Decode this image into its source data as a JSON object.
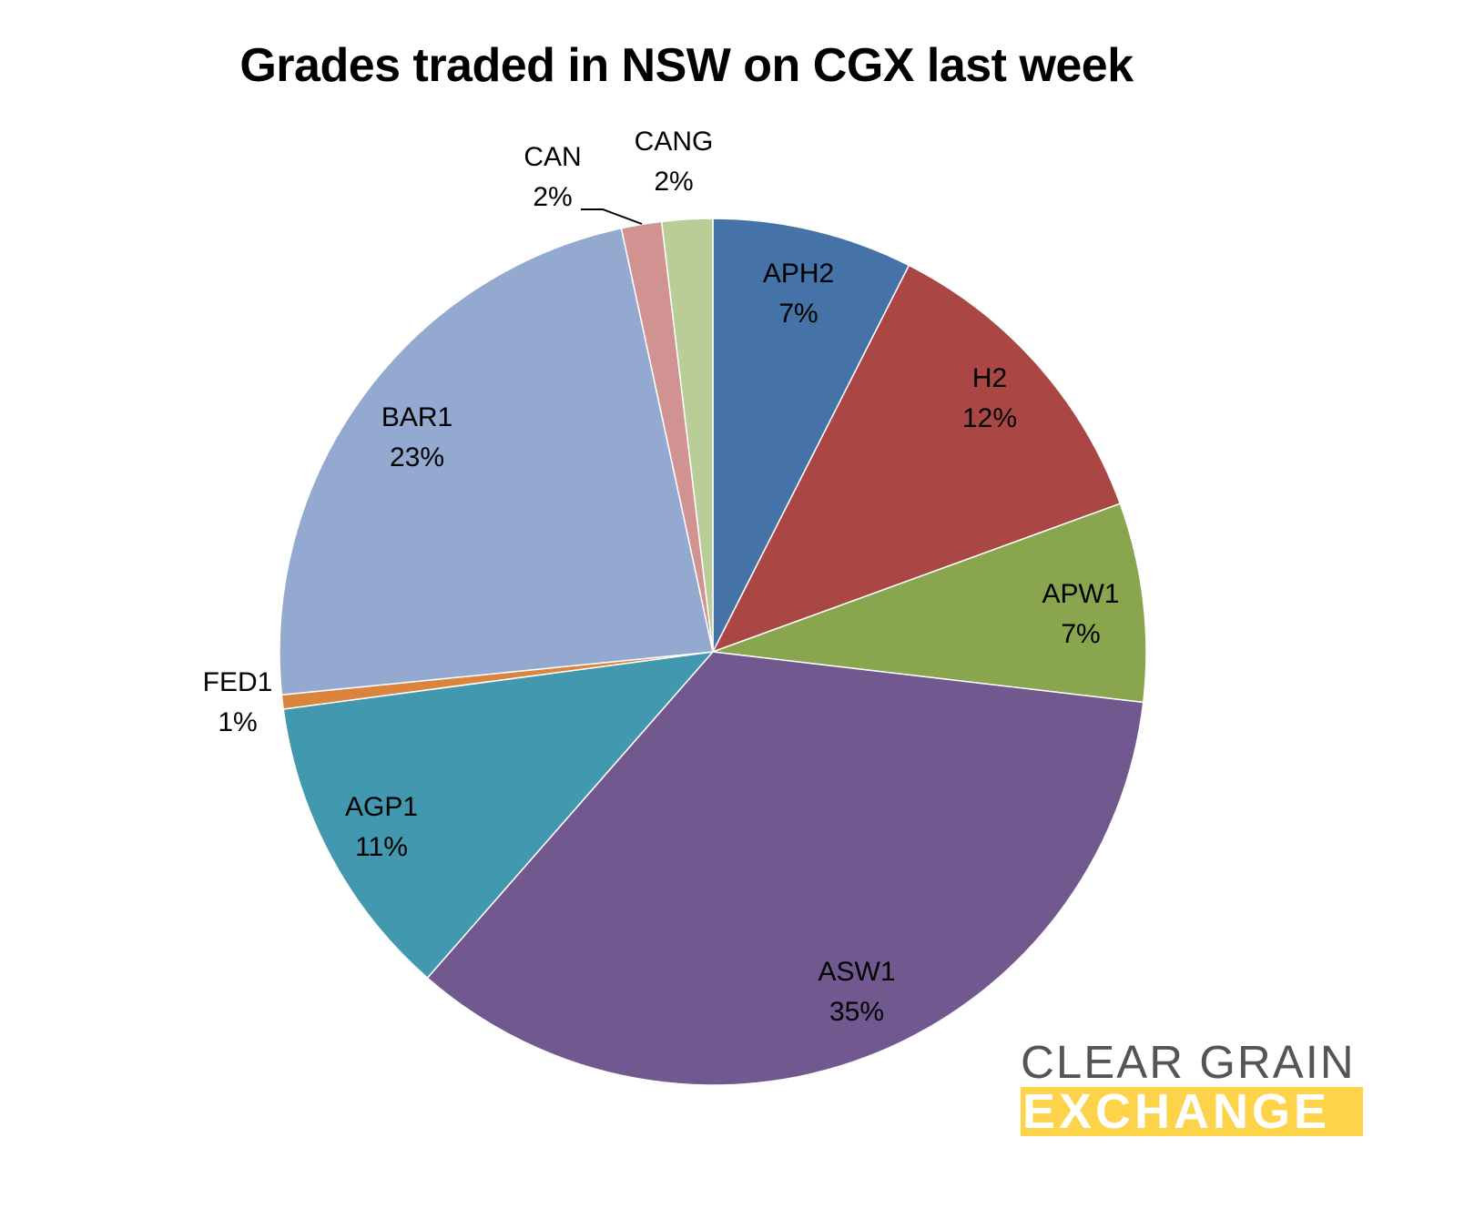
{
  "chart_data": {
    "type": "pie",
    "title": "Grades traded in NSW on CGX last week",
    "start_angle_deg": 0,
    "direction": "clockwise",
    "legend": "none (data labels on slices)",
    "slices": [
      {
        "label": "APH2",
        "value": 7,
        "display": "7%",
        "color": "#4572a7"
      },
      {
        "label": "H2",
        "value": 12,
        "display": "12%",
        "color": "#aa4643"
      },
      {
        "label": "APW1",
        "value": 7,
        "display": "7%",
        "color": "#89a54e"
      },
      {
        "label": "ASW1",
        "value": 35,
        "display": "35%",
        "color": "#71588f"
      },
      {
        "label": "AGP1",
        "value": 11,
        "display": "11%",
        "color": "#4198af"
      },
      {
        "label": "FED1",
        "value": 1,
        "display": "1%",
        "color": "#db843d"
      },
      {
        "label": "BAR1",
        "value": 23,
        "display": "23%",
        "color": "#93a9cf"
      },
      {
        "label": "CAN",
        "value": 2,
        "display": "2%",
        "color": "#d19392"
      },
      {
        "label": "CANG",
        "value": 2,
        "display": "2%",
        "color": "#b9cd96"
      }
    ]
  },
  "labels": {
    "APH2": {
      "name": "APH2",
      "pct": "7%"
    },
    "H2": {
      "name": "H2",
      "pct": "12%"
    },
    "APW1": {
      "name": "APW1",
      "pct": "7%"
    },
    "ASW1": {
      "name": "ASW1",
      "pct": "35%"
    },
    "AGP1": {
      "name": "AGP1",
      "pct": "11%"
    },
    "FED1": {
      "name": "FED1",
      "pct": "1%"
    },
    "BAR1": {
      "name": "BAR1",
      "pct": "23%"
    },
    "CAN": {
      "name": "CAN",
      "pct": "2%"
    },
    "CANG": {
      "name": "CANG",
      "pct": "2%"
    }
  },
  "logo": {
    "line1": "CLEAR GRAIN",
    "line2": "EXCHANGE",
    "text_color": "#555555",
    "band_color": "#fcd349"
  }
}
